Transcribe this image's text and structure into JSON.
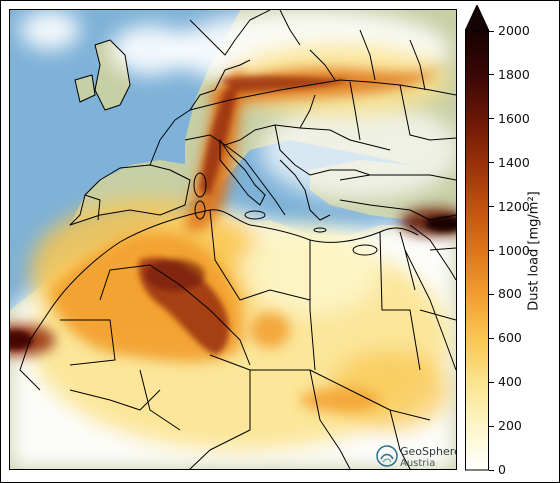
{
  "map": {
    "name": "Dust load map over Europe, Middle East and North Africa",
    "logo": {
      "line1": "GeoSphere",
      "line2": "Austria"
    }
  },
  "colorbar": {
    "label": "Dust load [mg/m²]",
    "ticks": [
      "0",
      "200",
      "400",
      "600",
      "800",
      "1000",
      "1200",
      "1400",
      "1600",
      "1800",
      "2000"
    ],
    "extend": "max",
    "colors": [
      "#ffffff",
      "#fdf6c8",
      "#fbe38e",
      "#f9c64f",
      "#f29e2d",
      "#de7419",
      "#c0510f",
      "#98300a",
      "#6a1707",
      "#3a0705",
      "#160303"
    ]
  },
  "colors": {
    "sea": "#7eb2d8",
    "land": "#c7cfa6",
    "borders": "#000000"
  }
}
